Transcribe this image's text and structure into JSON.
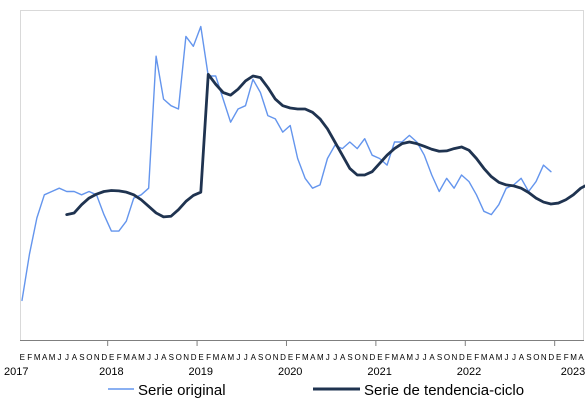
{
  "chart_data": {
    "type": "line",
    "title": "",
    "xlabel": "",
    "ylabel": "",
    "grid": false,
    "y_axis_visible": false,
    "legend_position": "bottom",
    "x_start": "2017-01",
    "month_labels": [
      "E",
      "F",
      "M",
      "A",
      "M",
      "J",
      "J",
      "A",
      "S",
      "O",
      "N",
      "D"
    ],
    "year_labels": [
      "2017",
      "2018",
      "2019",
      "2020",
      "2021",
      "2022",
      "2023"
    ],
    "ylim": [
      0,
      100
    ],
    "series": [
      {
        "name": "Serie original",
        "color": "#6495ED",
        "values": [
          12,
          26,
          37,
          44,
          45,
          46,
          45,
          45,
          44,
          45,
          44,
          38,
          33,
          33,
          36,
          43,
          44,
          46,
          86,
          73,
          71,
          70,
          92,
          89,
          95,
          80,
          80,
          73,
          66,
          70,
          71,
          79,
          75,
          68,
          67,
          63,
          65,
          55,
          49,
          46,
          47,
          55,
          59,
          58,
          60,
          58,
          61,
          56,
          55,
          53,
          60,
          60,
          62,
          60,
          56,
          50,
          45,
          49,
          46,
          50,
          48,
          44,
          39,
          38,
          41,
          46,
          47,
          49,
          45,
          48,
          53,
          51
        ],
        "x_start": "2017-01"
      },
      {
        "name": "Serie de tendencia-ciclo",
        "color": "#1F3350",
        "values": [
          38,
          38.5,
          41,
          43,
          44.2,
          45,
          45.3,
          45.2,
          44.8,
          44,
          42.5,
          40.5,
          38.5,
          37.3,
          37.5,
          39.5,
          42,
          43.8,
          44.8,
          80.5,
          77.5,
          75,
          74.2,
          76,
          78.5,
          80,
          79.5,
          76.5,
          73,
          71,
          70.3,
          70,
          70,
          69,
          67,
          64,
          60,
          56,
          52,
          50,
          50,
          51,
          53.5,
          56,
          58,
          59.5,
          60,
          59.5,
          58.7,
          57.8,
          57.2,
          57.3,
          58,
          58.5,
          57.5,
          55,
          52,
          49.5,
          47.8,
          47,
          46.7,
          46,
          44.7,
          43,
          41.8,
          41.2,
          41.5,
          42.5,
          44,
          46,
          47.2,
          48.3
        ],
        "x_start": "2017-07"
      }
    ]
  }
}
